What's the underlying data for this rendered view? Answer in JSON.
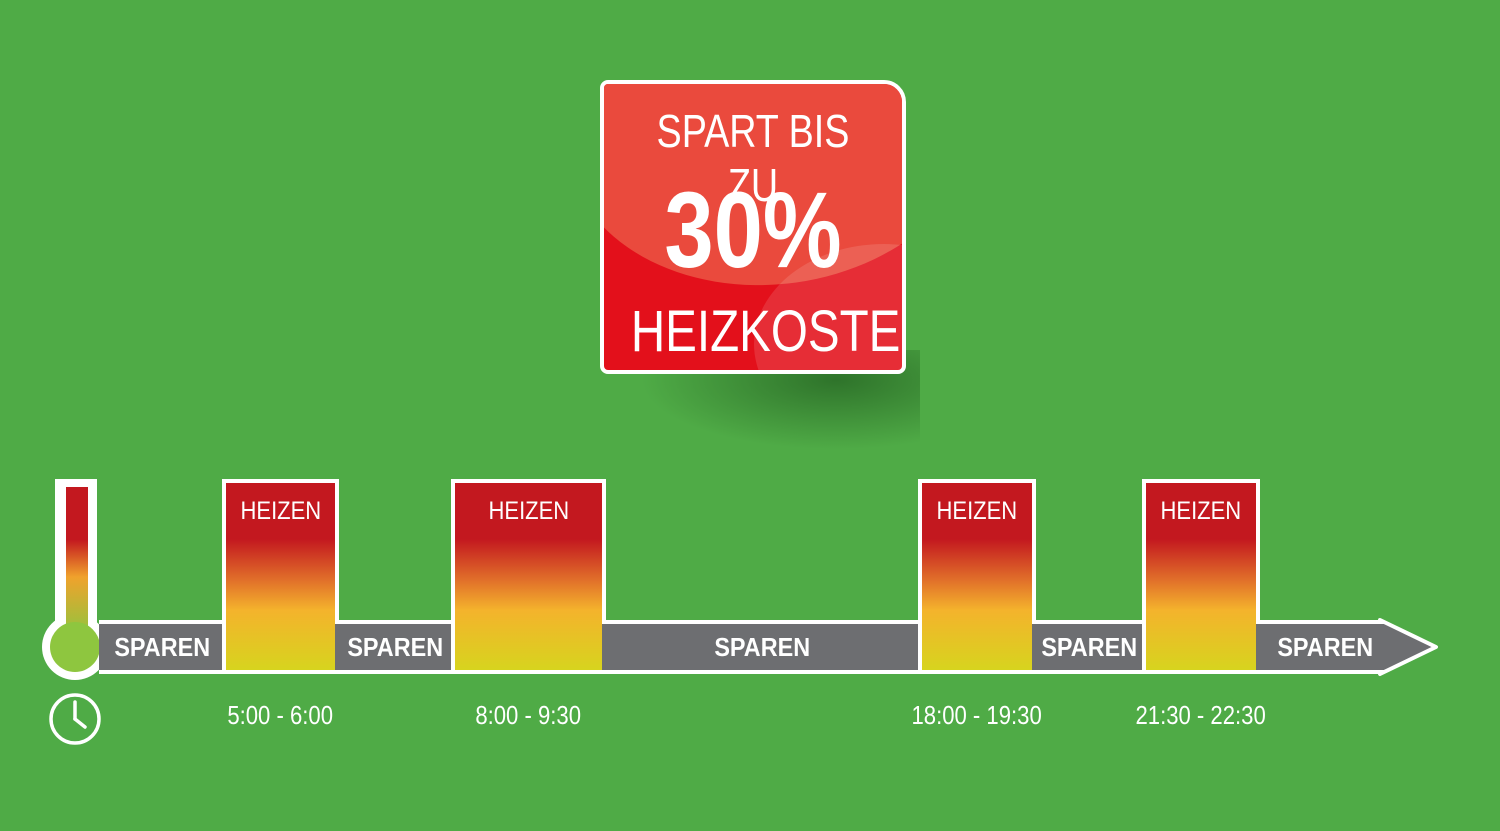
{
  "badge": {
    "line1": "SPART BIS ZU",
    "line2": "30%",
    "line3": "HEIZKOSTEN"
  },
  "timeline": {
    "segments": [
      {
        "type": "sparen",
        "label": "SPAREN"
      },
      {
        "type": "heizen",
        "label": "HEIZEN",
        "time": "5:00 - 6:00"
      },
      {
        "type": "sparen",
        "label": "SPAREN"
      },
      {
        "type": "heizen",
        "label": "HEIZEN",
        "time": "8:00 - 9:30"
      },
      {
        "type": "sparen",
        "label": "SPAREN"
      },
      {
        "type": "heizen",
        "label": "HEIZEN",
        "time": "18:00 - 19:30"
      },
      {
        "type": "sparen",
        "label": "SPAREN"
      },
      {
        "type": "heizen",
        "label": "HEIZEN",
        "time": "21:30 - 22:30"
      },
      {
        "type": "sparen",
        "label": "SPAREN"
      }
    ]
  },
  "icons": {
    "thermometer": "thermometer-icon",
    "clock": "clock-icon"
  },
  "colors": {
    "background": "#4fab46",
    "badge_red": "#e3101b",
    "sparen_gray": "#6d6e71",
    "heat_top": "#c3181f",
    "heat_bottom": "#d7d41e"
  }
}
